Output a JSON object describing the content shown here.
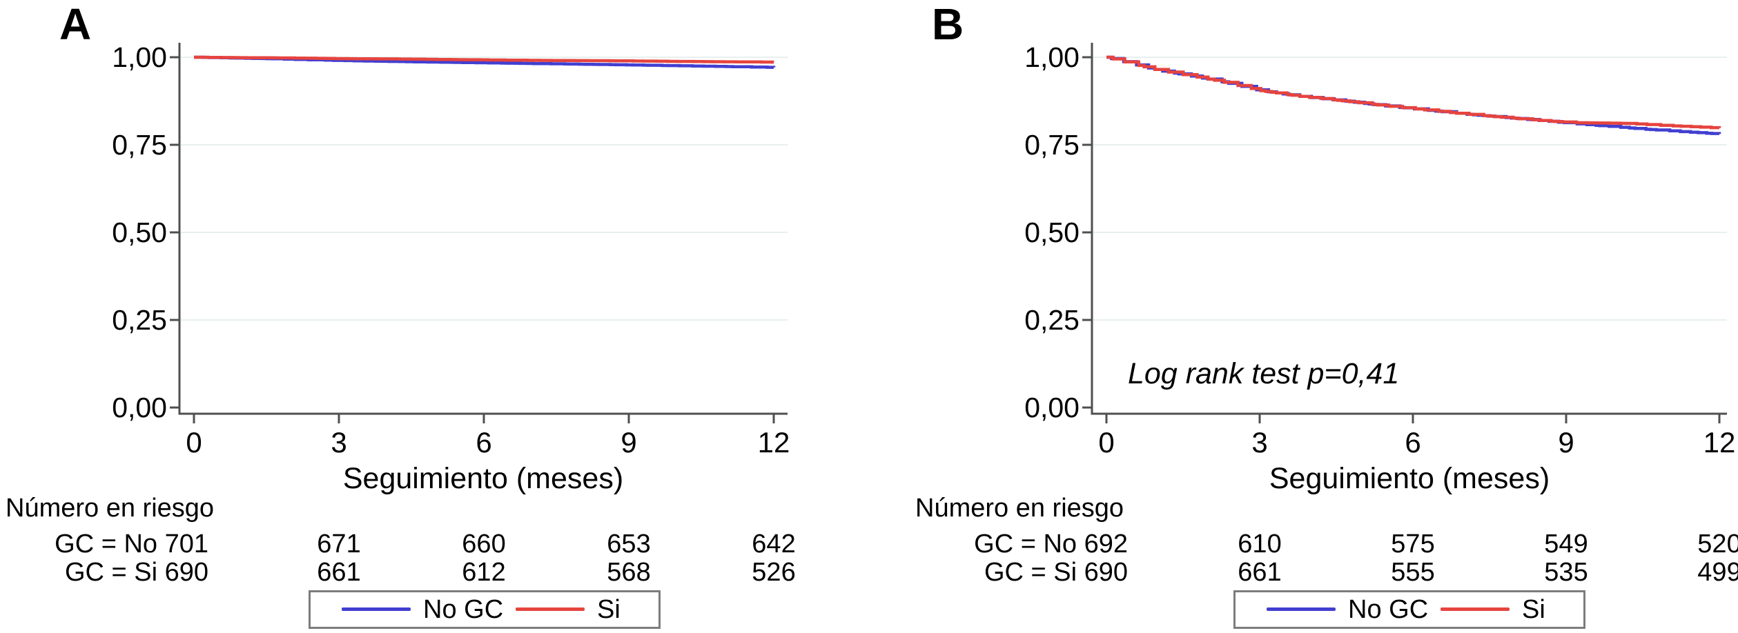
{
  "figure": {
    "description": "Kaplan-Meier survival curves, panels A and B",
    "language": "es"
  },
  "colors": {
    "no_gc_line": "#423fd1",
    "si_gc_line": "#e6443f",
    "gridline": "#e7f0ee",
    "axis": "#4f4f4f",
    "legend_border": "#7c7c7c",
    "text": "#000000"
  },
  "panels": [
    {
      "label": "A",
      "x_axis": {
        "title": "Seguimiento (meses)",
        "tick_labels": [
          "0",
          "3",
          "6",
          "9",
          "12"
        ]
      },
      "y_axis": {
        "tick_labels": [
          "1,00",
          "0,75",
          "0,50",
          "0,25",
          "0,00"
        ]
      },
      "annotation": "",
      "risk_table": {
        "header": "Número en riesgo",
        "rows": [
          {
            "label": "GC = No 701",
            "values": [
              "671",
              "660",
              "653",
              "642"
            ]
          },
          {
            "label": "GC = Si 690",
            "values": [
              "661",
              "612",
              "568",
              "526"
            ]
          }
        ]
      },
      "legend": [
        {
          "label": "No GC",
          "color_key": "no_gc_line"
        },
        {
          "label": "Si GC",
          "color_key": "si_gc_line"
        }
      ]
    },
    {
      "label": "B",
      "x_axis": {
        "title": "Seguimiento (meses)",
        "tick_labels": [
          "0",
          "3",
          "6",
          "9",
          "12"
        ]
      },
      "y_axis": {
        "tick_labels": [
          "1,00",
          "0,75",
          "0,50",
          "0,25",
          "0,00"
        ]
      },
      "annotation": "Log rank test p=0,41",
      "risk_table": {
        "header": "Número en riesgo",
        "rows": [
          {
            "label": "GC = No 692",
            "values": [
              "610",
              "575",
              "549",
              "520"
            ]
          },
          {
            "label": "GC = Si 690",
            "values": [
              "661",
              "555",
              "535",
              "499"
            ]
          }
        ]
      },
      "legend": [
        {
          "label": "No GC",
          "color_key": "no_gc_line"
        },
        {
          "label": "Si GC",
          "color_key": "si_gc_line"
        }
      ]
    }
  ],
  "chart_data": [
    {
      "type": "line",
      "subtype": "kaplan-meier-step",
      "panel": "A",
      "xlabel": "Seguimiento (meses)",
      "ylabel": "",
      "xlim": [
        0,
        12
      ],
      "ylim": [
        0.0,
        1.0
      ],
      "xticks": [
        0,
        3,
        6,
        9,
        12
      ],
      "yticks": [
        1.0,
        0.75,
        0.5,
        0.25,
        0.0
      ],
      "grid": "horizontal",
      "legend_position": "bottom-framed",
      "series": [
        {
          "name": "No GC",
          "color_key": "no_gc_line",
          "points": [
            [
              0,
              1.0
            ],
            [
              0.7,
              0.998
            ],
            [
              1.5,
              0.996
            ],
            [
              2.3,
              0.993
            ],
            [
              3.2,
              0.99
            ],
            [
              4.5,
              0.987
            ],
            [
              6,
              0.984
            ],
            [
              7.5,
              0.981
            ],
            [
              9,
              0.978
            ],
            [
              10.3,
              0.975
            ],
            [
              11.2,
              0.973
            ],
            [
              12,
              0.971
            ]
          ]
        },
        {
          "name": "Si GC",
          "color_key": "si_gc_line",
          "points": [
            [
              0,
              1.0
            ],
            [
              0.8,
              0.999
            ],
            [
              1.8,
              0.998
            ],
            [
              3,
              0.996
            ],
            [
              4.2,
              0.995
            ],
            [
              5.5,
              0.993
            ],
            [
              7,
              0.991
            ],
            [
              8.5,
              0.99
            ],
            [
              10,
              0.988
            ],
            [
              11,
              0.987
            ],
            [
              12,
              0.986
            ]
          ]
        }
      ],
      "number_at_risk": {
        "times": [
          0,
          3,
          6,
          9,
          12
        ],
        "GC = No": [
          701,
          671,
          660,
          653,
          642
        ],
        "GC = Si": [
          690,
          661,
          612,
          568,
          526
        ]
      }
    },
    {
      "type": "line",
      "subtype": "kaplan-meier-step",
      "panel": "B",
      "xlabel": "Seguimiento (meses)",
      "ylabel": "",
      "xlim": [
        0,
        12
      ],
      "ylim": [
        0.0,
        1.0
      ],
      "xticks": [
        0,
        3,
        6,
        9,
        12
      ],
      "yticks": [
        1.0,
        0.75,
        0.5,
        0.25,
        0.0
      ],
      "grid": "horizontal",
      "legend_position": "bottom-framed",
      "annotation": "Log rank test p=0,41",
      "series": [
        {
          "name": "No GC",
          "color_key": "no_gc_line",
          "points": [
            [
              0,
              1.0
            ],
            [
              0.4,
              0.985
            ],
            [
              1,
              0.963
            ],
            [
              1.6,
              0.948
            ],
            [
              2.2,
              0.932
            ],
            [
              3,
              0.905
            ],
            [
              3.8,
              0.888
            ],
            [
              4.6,
              0.876
            ],
            [
              5.4,
              0.862
            ],
            [
              6.2,
              0.85
            ],
            [
              7,
              0.838
            ],
            [
              7.8,
              0.828
            ],
            [
              8.6,
              0.818
            ],
            [
              9.2,
              0.81
            ],
            [
              9.8,
              0.803
            ],
            [
              10.5,
              0.795
            ],
            [
              11.2,
              0.788
            ],
            [
              12,
              0.781
            ]
          ]
        },
        {
          "name": "Si GC",
          "color_key": "si_gc_line",
          "points": [
            [
              0,
              1.0
            ],
            [
              0.4,
              0.985
            ],
            [
              1,
              0.963
            ],
            [
              1.6,
              0.948
            ],
            [
              2.2,
              0.932
            ],
            [
              3,
              0.905
            ],
            [
              3.8,
              0.888
            ],
            [
              4.6,
              0.876
            ],
            [
              5.4,
              0.862
            ],
            [
              6.2,
              0.85
            ],
            [
              7,
              0.838
            ],
            [
              7.8,
              0.828
            ],
            [
              8.6,
              0.818
            ],
            [
              9.2,
              0.813
            ],
            [
              10.2,
              0.811
            ],
            [
              10.8,
              0.806
            ],
            [
              11.4,
              0.802
            ],
            [
              12,
              0.798
            ]
          ]
        }
      ],
      "number_at_risk": {
        "times": [
          0,
          3,
          6,
          9,
          12
        ],
        "GC = No": [
          692,
          610,
          575,
          549,
          520
        ],
        "GC = Si": [
          690,
          661,
          555,
          535,
          499
        ]
      }
    }
  ]
}
